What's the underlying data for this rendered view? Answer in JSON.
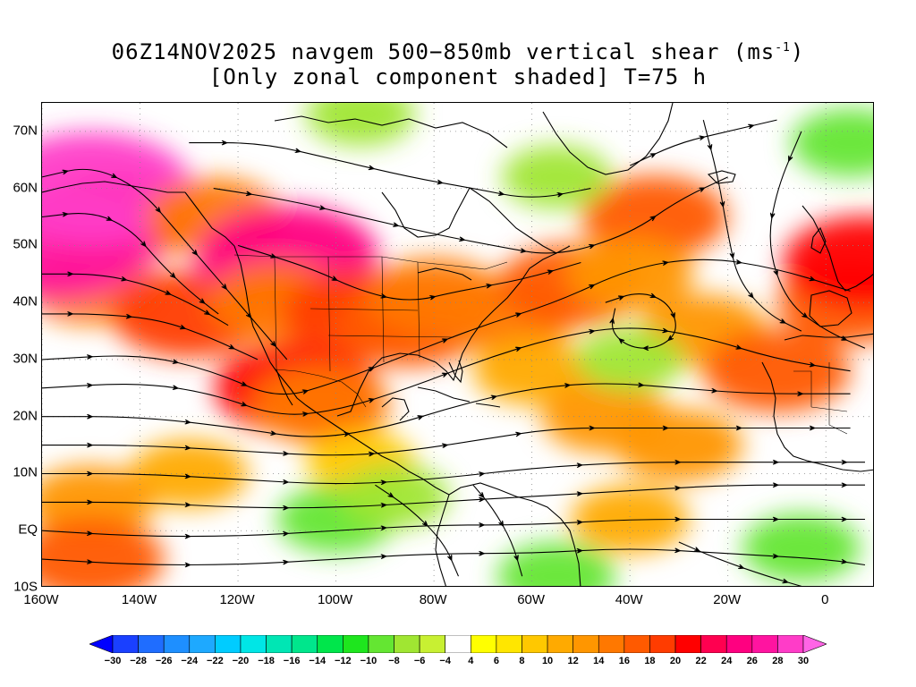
{
  "header": {
    "title_prefix": "06Z14NOV2025 navgem 500−850mb vertical shear (ms",
    "title_sup": "-1",
    "title_suffix": ")",
    "subtitle": "[Only zonal component shaded] T=75 h"
  },
  "map": {
    "lon_range": [
      -160,
      10
    ],
    "lat_range": [
      -10,
      75
    ],
    "lat_labels": [
      {
        "lat": 70,
        "text": "70N"
      },
      {
        "lat": 60,
        "text": "60N"
      },
      {
        "lat": 50,
        "text": "50N"
      },
      {
        "lat": 40,
        "text": "40N"
      },
      {
        "lat": 30,
        "text": "30N"
      },
      {
        "lat": 20,
        "text": "20N"
      },
      {
        "lat": 10,
        "text": "10N"
      },
      {
        "lat": 0,
        "text": "EQ"
      },
      {
        "lat": -10,
        "text": "10S"
      }
    ],
    "lon_labels": [
      {
        "lon": -160,
        "text": "160W"
      },
      {
        "lon": -140,
        "text": "140W"
      },
      {
        "lon": -120,
        "text": "120W"
      },
      {
        "lon": -100,
        "text": "100W"
      },
      {
        "lon": -80,
        "text": "80W"
      },
      {
        "lon": -60,
        "text": "60W"
      },
      {
        "lon": -40,
        "text": "40W"
      },
      {
        "lon": -20,
        "text": "20W"
      },
      {
        "lon": 0,
        "text": "0"
      }
    ],
    "shading_features": [
      {
        "lon": -150,
        "lat": 43,
        "value": 14
      },
      {
        "lon": -145,
        "lat": 55,
        "value": 20
      },
      {
        "lon": -157,
        "lat": 50,
        "value": 26
      },
      {
        "lon": -150,
        "lat": 60,
        "value": 28
      },
      {
        "lon": -130,
        "lat": 38,
        "value": 18
      },
      {
        "lon": -125,
        "lat": 55,
        "value": 14
      },
      {
        "lon": -110,
        "lat": 48,
        "value": 24
      },
      {
        "lon": -112,
        "lat": 40,
        "value": 14
      },
      {
        "lon": -108,
        "lat": 25,
        "value": 20
      },
      {
        "lon": -103,
        "lat": 22,
        "value": 14
      },
      {
        "lon": -95,
        "lat": 38,
        "value": 18
      },
      {
        "lon": -85,
        "lat": 36,
        "value": 16
      },
      {
        "lon": -80,
        "lat": 41,
        "value": 14
      },
      {
        "lon": -65,
        "lat": 38,
        "value": 14
      },
      {
        "lon": -52,
        "lat": 43,
        "value": 16
      },
      {
        "lon": -35,
        "lat": 55,
        "value": 16
      },
      {
        "lon": -40,
        "lat": 45,
        "value": 12
      },
      {
        "lon": -25,
        "lat": 35,
        "value": 12
      },
      {
        "lon": -10,
        "lat": 28,
        "value": 16
      },
      {
        "lon": 5,
        "lat": 40,
        "value": 16
      },
      {
        "lon": 8,
        "lat": 47,
        "value": 20
      },
      {
        "lon": -60,
        "lat": 28,
        "value": 10
      },
      {
        "lon": -45,
        "lat": 20,
        "value": 12
      },
      {
        "lon": -30,
        "lat": 15,
        "value": 12
      },
      {
        "lon": -130,
        "lat": 10,
        "value": 10
      },
      {
        "lon": -150,
        "lat": 5,
        "value": 12
      },
      {
        "lon": -150,
        "lat": -5,
        "value": 16
      },
      {
        "lon": -95,
        "lat": 12,
        "value": 8
      },
      {
        "lon": -40,
        "lat": 2,
        "value": 10
      },
      {
        "lon": -100,
        "lat": 2,
        "value": -10
      },
      {
        "lon": -88,
        "lat": 6,
        "value": -8
      },
      {
        "lon": -5,
        "lat": -3,
        "value": -10
      },
      {
        "lon": -40,
        "lat": 30,
        "value": -8
      },
      {
        "lon": -55,
        "lat": 62,
        "value": -8
      },
      {
        "lon": -95,
        "lat": 73,
        "value": -8
      },
      {
        "lon": 5,
        "lat": 68,
        "value": -10
      },
      {
        "lon": -55,
        "lat": -8,
        "value": -10
      }
    ],
    "streamlines": [
      [
        [
          -160,
          30
        ],
        [
          -140,
          31
        ],
        [
          -125,
          28
        ],
        [
          -112,
          23
        ],
        [
          -100,
          26
        ],
        [
          -85,
          31
        ],
        [
          -70,
          36
        ],
        [
          -55,
          40
        ],
        [
          -40,
          46
        ],
        [
          -25,
          48
        ],
        [
          -10,
          46
        ],
        [
          5,
          42
        ]
      ],
      [
        [
          -160,
          25
        ],
        [
          -140,
          26
        ],
        [
          -125,
          24
        ],
        [
          -112,
          20
        ],
        [
          -100,
          21
        ],
        [
          -85,
          25
        ],
        [
          -70,
          30
        ],
        [
          -55,
          34
        ],
        [
          -40,
          36
        ],
        [
          -25,
          34
        ],
        [
          -10,
          30
        ],
        [
          5,
          28
        ]
      ],
      [
        [
          -160,
          20
        ],
        [
          -140,
          20
        ],
        [
          -120,
          18
        ],
        [
          -105,
          16
        ],
        [
          -90,
          18
        ],
        [
          -75,
          22
        ],
        [
          -60,
          25
        ],
        [
          -45,
          26
        ],
        [
          -30,
          25
        ],
        [
          -15,
          24
        ],
        [
          5,
          24
        ]
      ],
      [
        [
          -160,
          15
        ],
        [
          -140,
          15
        ],
        [
          -120,
          14
        ],
        [
          -100,
          13
        ],
        [
          -85,
          14
        ],
        [
          -70,
          16
        ],
        [
          -55,
          18
        ],
        [
          -40,
          18
        ],
        [
          -25,
          18
        ],
        [
          -10,
          18
        ],
        [
          5,
          18
        ]
      ],
      [
        [
          -160,
          10
        ],
        [
          -140,
          10
        ],
        [
          -120,
          9
        ],
        [
          -100,
          8
        ],
        [
          -80,
          9
        ],
        [
          -60,
          11
        ],
        [
          -40,
          12
        ],
        [
          -20,
          12
        ],
        [
          0,
          12
        ],
        [
          8,
          12
        ]
      ],
      [
        [
          -160,
          5
        ],
        [
          -140,
          5
        ],
        [
          -120,
          4
        ],
        [
          -100,
          4
        ],
        [
          -80,
          5
        ],
        [
          -60,
          6
        ],
        [
          -40,
          7
        ],
        [
          -20,
          8
        ],
        [
          0,
          8
        ],
        [
          8,
          8
        ]
      ],
      [
        [
          -160,
          0
        ],
        [
          -140,
          -1
        ],
        [
          -120,
          -1
        ],
        [
          -100,
          0
        ],
        [
          -80,
          1
        ],
        [
          -60,
          1
        ],
        [
          -40,
          2
        ],
        [
          -20,
          2
        ],
        [
          0,
          2
        ],
        [
          8,
          2
        ]
      ],
      [
        [
          -160,
          -5
        ],
        [
          -140,
          -6
        ],
        [
          -120,
          -6
        ],
        [
          -100,
          -5
        ],
        [
          -80,
          -4
        ],
        [
          -60,
          -4
        ],
        [
          -40,
          -3
        ],
        [
          -20,
          -4
        ],
        [
          0,
          -5
        ],
        [
          8,
          -6
        ]
      ],
      [
        [
          -160,
          62
        ],
        [
          -150,
          64
        ],
        [
          -140,
          60
        ],
        [
          -132,
          52
        ],
        [
          -125,
          45
        ],
        [
          -120,
          40
        ],
        [
          -115,
          35
        ],
        [
          -110,
          30
        ]
      ],
      [
        [
          -160,
          55
        ],
        [
          -150,
          56
        ],
        [
          -142,
          53
        ],
        [
          -136,
          47
        ],
        [
          -130,
          42
        ],
        [
          -124,
          38
        ]
      ],
      [
        [
          -160,
          45
        ],
        [
          -148,
          45
        ],
        [
          -138,
          43
        ],
        [
          -130,
          40
        ],
        [
          -122,
          36
        ]
      ],
      [
        [
          -160,
          38
        ],
        [
          -148,
          38
        ],
        [
          -136,
          37
        ],
        [
          -126,
          34
        ],
        [
          -116,
          30
        ]
      ],
      [
        [
          -125,
          60
        ],
        [
          -110,
          58
        ],
        [
          -95,
          55
        ],
        [
          -80,
          52
        ],
        [
          -68,
          50
        ],
        [
          -55,
          48
        ],
        [
          -40,
          52
        ],
        [
          -30,
          58
        ],
        [
          -20,
          62
        ]
      ],
      [
        [
          -130,
          68
        ],
        [
          -115,
          68
        ],
        [
          -100,
          65
        ],
        [
          -85,
          62
        ],
        [
          -72,
          60
        ],
        [
          -60,
          58
        ],
        [
          -48,
          60
        ]
      ],
      [
        [
          -120,
          50
        ],
        [
          -105,
          46
        ],
        [
          -95,
          42
        ],
        [
          -85,
          40
        ],
        [
          -75,
          42
        ],
        [
          -62,
          44
        ],
        [
          -50,
          47
        ]
      ],
      [
        [
          -40,
          64
        ],
        [
          -30,
          68
        ],
        [
          -20,
          70
        ],
        [
          -10,
          72
        ]
      ],
      [
        [
          -5,
          70
        ],
        [
          -10,
          60
        ],
        [
          -12,
          50
        ],
        [
          -8,
          40
        ],
        [
          0,
          35
        ],
        [
          8,
          32
        ]
      ],
      [
        [
          -25,
          72
        ],
        [
          -22,
          62
        ],
        [
          -20,
          52
        ],
        [
          -18,
          44
        ],
        [
          -12,
          38
        ],
        [
          -5,
          35
        ]
      ],
      [
        [
          -45,
          40
        ],
        [
          -38,
          42
        ],
        [
          -32,
          40
        ],
        [
          -30,
          35
        ],
        [
          -34,
          32
        ],
        [
          -40,
          32
        ],
        [
          -44,
          35
        ],
        [
          -43,
          39
        ]
      ],
      [
        [
          -92,
          8
        ],
        [
          -85,
          4
        ],
        [
          -78,
          -2
        ],
        [
          -75,
          -8
        ]
      ],
      [
        [
          -72,
          8
        ],
        [
          -68,
          4
        ],
        [
          -64,
          -2
        ],
        [
          -62,
          -8
        ]
      ],
      [
        [
          -30,
          -2
        ],
        [
          -22,
          -5
        ],
        [
          -12,
          -8
        ],
        [
          -4,
          -10
        ]
      ]
    ]
  },
  "colorbar": {
    "labels": [
      "-30",
      "-28",
      "-26",
      "-24",
      "-22",
      "-20",
      "-18",
      "-16",
      "-14",
      "-12",
      "-10",
      "-8",
      "-6",
      "-4",
      "4",
      "6",
      "8",
      "10",
      "12",
      "14",
      "16",
      "18",
      "20",
      "22",
      "24",
      "26",
      "28",
      "30"
    ],
    "colors": [
      "#0000ff",
      "#1a40ff",
      "#1f6dff",
      "#1e8fff",
      "#1ea9ff",
      "#00ccff",
      "#00e6e6",
      "#00e6b4",
      "#00e68c",
      "#00e64b",
      "#1ee61e",
      "#64e632",
      "#a0e632",
      "#c8f032",
      "#ffffff",
      "#ffff00",
      "#ffe600",
      "#ffc800",
      "#ffaa00",
      "#ff9600",
      "#ff7800",
      "#ff5a00",
      "#ff3c00",
      "#ff0000",
      "#ff0050",
      "#ff0080",
      "#ff14a0",
      "#ff3cc8",
      "#ff64e6"
    ]
  },
  "colors": {
    "coast": "#000000",
    "stream": "#000000",
    "grid": "#888888"
  }
}
